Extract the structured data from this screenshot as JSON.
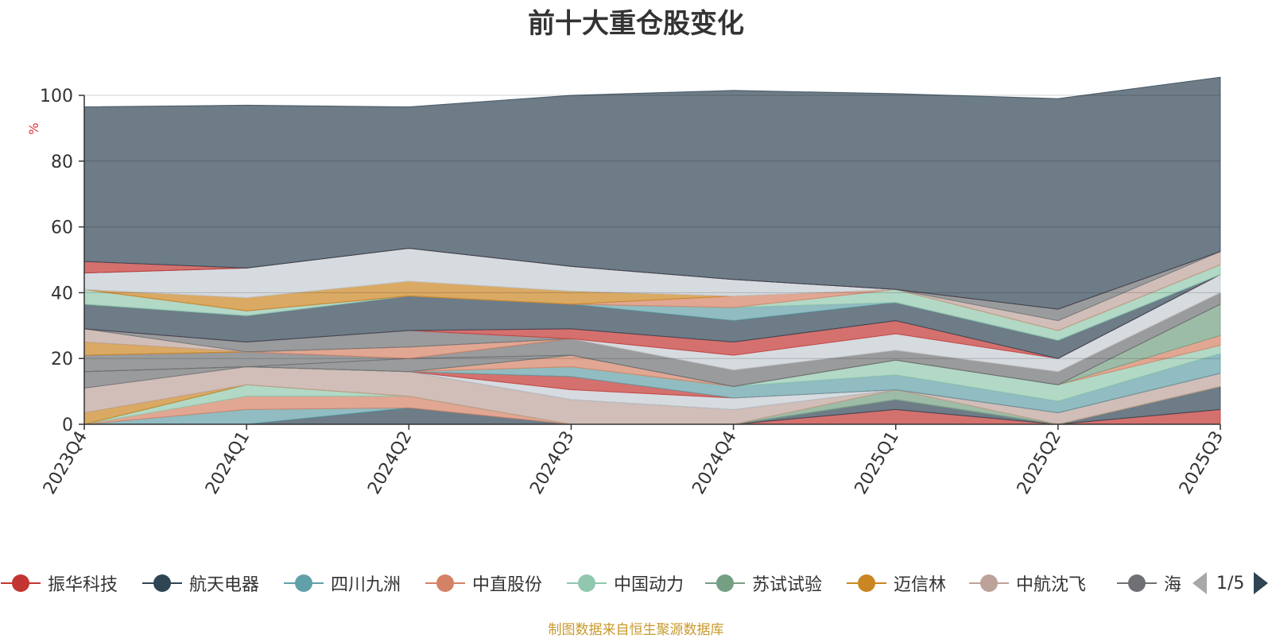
{
  "chart_data": {
    "type": "area",
    "stacked": true,
    "title": "前十大重仓股变化",
    "ylabel": "%",
    "ylim": [
      0,
      100
    ],
    "y_ticks": [
      "0",
      "20",
      "40",
      "60",
      "80",
      "100"
    ],
    "categories": [
      "2023Q4",
      "2024Q1",
      "2024Q2",
      "2024Q3",
      "2024Q4",
      "2025Q1",
      "2025Q2",
      "2025Q3"
    ],
    "grid": true,
    "legend_position": "bottom",
    "series": [
      {
        "name": "振华科技",
        "color": "#c23531",
        "values": [
          0,
          0,
          0,
          0,
          0,
          4.5,
          0,
          4.5
        ]
      },
      {
        "name": "航天电器",
        "color": "#2f4554",
        "values": [
          0,
          0,
          5,
          0,
          0,
          3,
          0,
          7
        ]
      },
      {
        "name": "四川九洲",
        "color": "#61a0a8",
        "values": [
          0,
          4.5,
          0,
          0,
          0,
          0,
          0,
          0
        ]
      },
      {
        "name": "中直股份",
        "color": "#d48265",
        "values": [
          0,
          4,
          3.5,
          0,
          0,
          0,
          0,
          0
        ]
      },
      {
        "name": "中国动力",
        "color": "#91c7ae",
        "values": [
          0,
          3.5,
          0,
          0,
          0,
          0,
          0,
          0
        ]
      },
      {
        "name": "苏试试验",
        "color": "#749f83",
        "values": [
          0,
          0,
          0,
          0,
          0,
          3,
          0,
          0
        ]
      },
      {
        "name": "迈信林",
        "color": "#ca8622",
        "values": [
          3.5,
          0,
          0,
          0,
          0,
          0,
          0,
          0
        ]
      },
      {
        "name": "中航沈飞",
        "color": "#bda29a",
        "values": [
          7.5,
          5.5,
          7.5,
          7.5,
          4.5,
          0,
          3.5,
          4
        ]
      },
      {
        "name": "海格通信",
        "color": "#6e7074",
        "values": [
          5,
          0,
          0,
          0,
          0,
          0,
          0,
          0
        ]
      },
      {
        "name": "",
        "color": "#c4ccd3",
        "values": [
          0,
          0,
          0,
          3,
          3.5,
          0,
          0,
          0
        ]
      },
      {
        "name": "",
        "color": "#c23531",
        "values": [
          0,
          0,
          0,
          4,
          0,
          0,
          0,
          0
        ]
      },
      {
        "name": "",
        "color": "#61a0a8",
        "values": [
          0,
          0,
          0,
          3,
          3.5,
          4.5,
          3.5,
          6
        ]
      },
      {
        "name": "",
        "color": "#91c7ae",
        "values": [
          0,
          0,
          0,
          0,
          0,
          4.5,
          5,
          2.5
        ]
      },
      {
        "name": "",
        "color": "#d48265",
        "values": [
          0,
          0,
          0,
          3.5,
          0,
          0,
          0,
          3
        ]
      },
      {
        "name": "",
        "color": "#749f83",
        "values": [
          0,
          0,
          0,
          0,
          0,
          0,
          0,
          9.5
        ]
      },
      {
        "name": "",
        "color": "#6e7074",
        "values": [
          0,
          0,
          4,
          0,
          0,
          0,
          0,
          0
        ]
      },
      {
        "name": "",
        "color": "#6e7074",
        "values": [
          5,
          4.5,
          0,
          5,
          5,
          3,
          4,
          3.5
        ]
      },
      {
        "name": "",
        "color": "#d48265",
        "values": [
          0,
          0,
          3.5,
          0,
          0,
          0,
          0,
          0
        ]
      },
      {
        "name": "",
        "color": "#ca8622",
        "values": [
          4,
          0,
          0,
          0,
          0,
          0,
          0,
          0
        ]
      },
      {
        "name": "",
        "color": "#bda29a",
        "values": [
          4,
          0,
          0,
          0,
          0,
          0,
          0,
          0
        ]
      },
      {
        "name": "",
        "color": "#6e7074",
        "values": [
          0,
          3,
          5,
          0,
          0,
          0,
          0,
          0
        ]
      },
      {
        "name": "",
        "color": "#c4ccd3",
        "values": [
          0,
          0,
          0,
          0,
          4.5,
          5,
          4,
          5.5
        ]
      },
      {
        "name": "",
        "color": "#c23531",
        "values": [
          0,
          0,
          0,
          3,
          4,
          4,
          0,
          0
        ]
      },
      {
        "name": "",
        "color": "#2f4554",
        "values": [
          7.5,
          8,
          10.5,
          7.5,
          6.5,
          5.5,
          5.5,
          0
        ]
      },
      {
        "name": "",
        "color": "#61a0a8",
        "values": [
          0,
          0,
          0,
          0,
          4,
          0,
          0,
          0
        ]
      },
      {
        "name": "",
        "color": "#91c7ae",
        "values": [
          4.5,
          1.5,
          0,
          0,
          0,
          4,
          3,
          3
        ]
      },
      {
        "name": "",
        "color": "#d48265",
        "values": [
          0,
          0,
          0,
          0,
          3.5,
          0,
          0,
          0
        ]
      },
      {
        "name": "",
        "color": "#ca8622",
        "values": [
          0,
          4,
          4.5,
          4,
          0,
          0,
          0,
          0
        ]
      },
      {
        "name": "",
        "color": "#bda29a",
        "values": [
          0,
          0,
          0,
          0,
          0,
          0,
          3,
          4
        ]
      },
      {
        "name": "",
        "color": "#c4ccd3",
        "values": [
          5,
          9,
          10,
          7.5,
          5,
          0,
          0,
          0
        ]
      },
      {
        "name": "",
        "color": "#6e7074",
        "values": [
          0,
          0,
          0,
          0,
          0,
          0,
          3.5,
          0
        ]
      },
      {
        "name": "",
        "color": "#c23531",
        "values": [
          3.5,
          0,
          0,
          0,
          0,
          0,
          0,
          0
        ]
      },
      {
        "name": "",
        "color": "#2f4554",
        "values": [
          47,
          49.5,
          43,
          52,
          57.5,
          59.5,
          64,
          53
        ]
      }
    ]
  },
  "legend": {
    "page_indicator": "1/5"
  },
  "source_note": "制图数据来自恒生聚源数据库"
}
